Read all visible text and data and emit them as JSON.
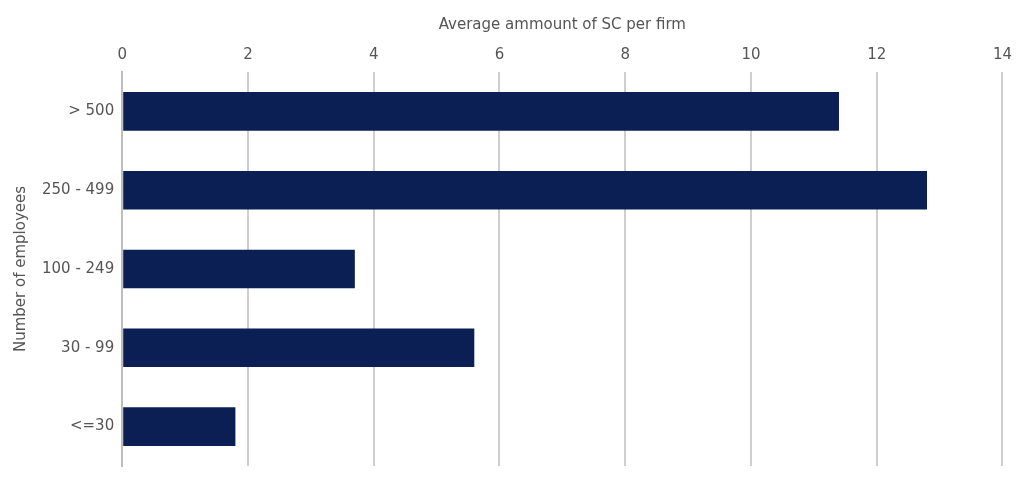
{
  "chart_data": {
    "type": "bar",
    "orientation": "horizontal",
    "xlabel": "Average ammount of SC per firm",
    "ylabel": "Number of employees",
    "categories": [
      "> 500",
      "250 - 499",
      "100 - 249",
      "30 - 99",
      "<=30"
    ],
    "values": [
      11.4,
      12.8,
      3.7,
      5.6,
      1.8
    ],
    "color": "#0b1f55",
    "xlim": [
      0,
      14
    ],
    "xticks": [
      0,
      2,
      4,
      6,
      8,
      10,
      12,
      14
    ],
    "grid": "x",
    "legend": false
  }
}
